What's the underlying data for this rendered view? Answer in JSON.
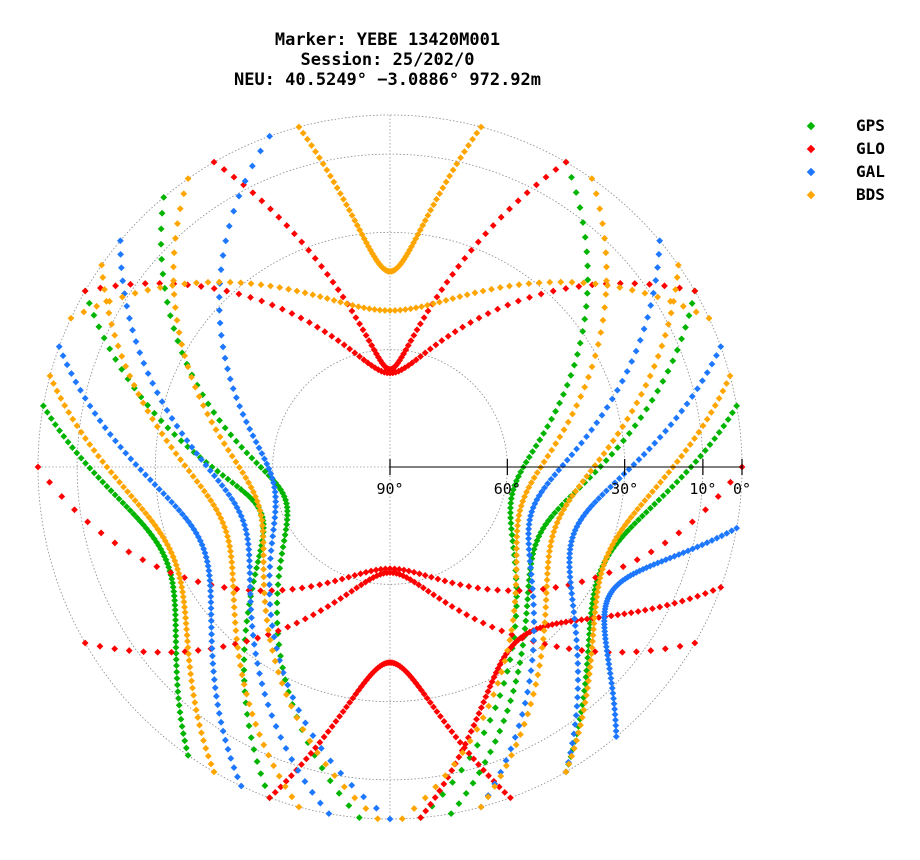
{
  "chart_data": {
    "type": "scatter",
    "title": "Marker: YEBE 13420M001",
    "subtitle_lines": [
      "Session: 25/202/0",
      "NEU: 40.5249° −3.0886° 972.92m"
    ],
    "projection": "polar sky plot (azimuth / elevation)",
    "elevation_rings_deg": [
      90,
      60,
      30,
      10,
      0
    ],
    "elevation_tick_labels": [
      "90°",
      "60°",
      "30°",
      "10°",
      "0°"
    ],
    "grid": true,
    "legend_position": "top-right",
    "series": [
      {
        "name": "GPS",
        "color": "#00b400",
        "tracks": [
          {
            "az_start": 300,
            "az_end": 200,
            "el_max": 55
          },
          {
            "az_start": 60,
            "az_end": 170,
            "el_max": 48
          },
          {
            "az_start": 320,
            "az_end": 185,
            "el_max": 62
          },
          {
            "az_start": 30,
            "az_end": 175,
            "el_max": 58
          },
          {
            "az_start": 280,
            "az_end": 215,
            "el_max": 28
          },
          {
            "az_start": 80,
            "az_end": 150,
            "el_max": 30
          }
        ]
      },
      {
        "name": "GLO",
        "color": "#ff0000",
        "tracks": [
          {
            "az_start": 270,
            "az_end": 90,
            "el_max": 64
          },
          {
            "az_start": 300,
            "az_end": 60,
            "el_max": 66
          },
          {
            "az_start": 240,
            "az_end": 120,
            "el_max": 63
          },
          {
            "az_start": 330,
            "az_end": 30,
            "el_max": 65
          },
          {
            "az_start": 200,
            "az_end": 160,
            "el_max": 40
          },
          {
            "az_start": 110,
            "az_end": 175,
            "el_max": 35
          }
        ]
      },
      {
        "name": "GAL",
        "color": "#1e78ff",
        "tracks": [
          {
            "az_start": 310,
            "az_end": 190,
            "el_max": 50
          },
          {
            "az_start": 50,
            "az_end": 165,
            "el_max": 52
          },
          {
            "az_start": 290,
            "az_end": 205,
            "el_max": 38
          },
          {
            "az_start": 70,
            "az_end": 150,
            "el_max": 40
          },
          {
            "az_start": 340,
            "az_end": 180,
            "el_max": 60
          },
          {
            "az_start": 100,
            "az_end": 140,
            "el_max": 25
          }
        ]
      },
      {
        "name": "BDS",
        "color": "#ffa500",
        "tracks": [
          {
            "az_start": 305,
            "az_end": 195,
            "el_max": 45
          },
          {
            "az_start": 55,
            "az_end": 165,
            "el_max": 45
          },
          {
            "az_start": 325,
            "az_end": 182,
            "el_max": 55
          },
          {
            "az_start": 35,
            "az_end": 178,
            "el_max": 55
          },
          {
            "az_start": 285,
            "az_end": 210,
            "el_max": 30
          },
          {
            "az_start": 75,
            "az_end": 150,
            "el_max": 30
          },
          {
            "az_start": 295,
            "az_end": 65,
            "el_max": 50
          },
          {
            "az_start": 345,
            "az_end": 15,
            "el_max": 40
          }
        ]
      }
    ]
  }
}
